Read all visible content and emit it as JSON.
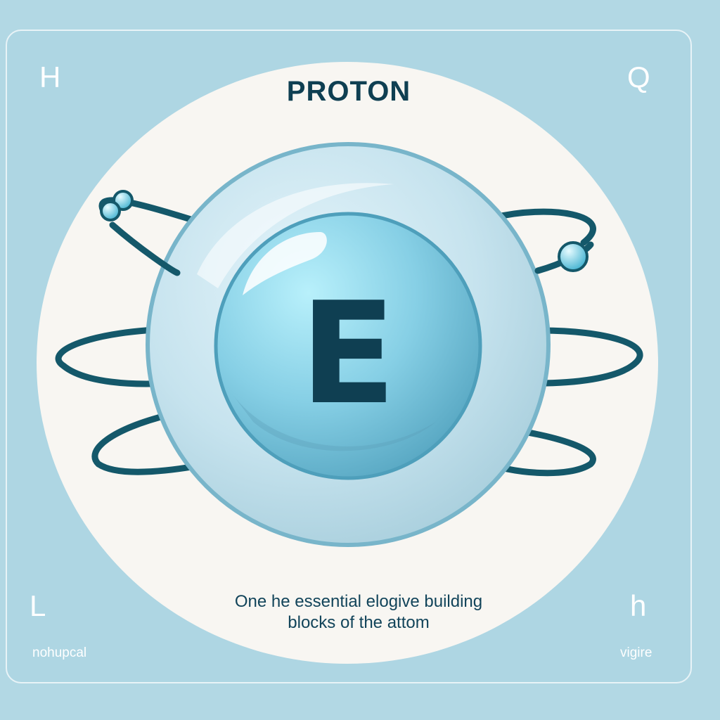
{
  "title": "PROTON",
  "letter": "E",
  "caption": {
    "line1": "One he  essential elogive building",
    "line2": "blocks of the attom"
  },
  "corners": {
    "top_left": "H",
    "top_right": "Q",
    "bottom_left": "L",
    "bottom_right": "h"
  },
  "footer": {
    "left": "nohupcal",
    "right": "vigire"
  },
  "colors": {
    "background": "#b2d8e4",
    "disc": "#f8f6f2",
    "orbit": "#14586a",
    "sphere": "#8fd6ea",
    "text": "#0f3f52"
  }
}
